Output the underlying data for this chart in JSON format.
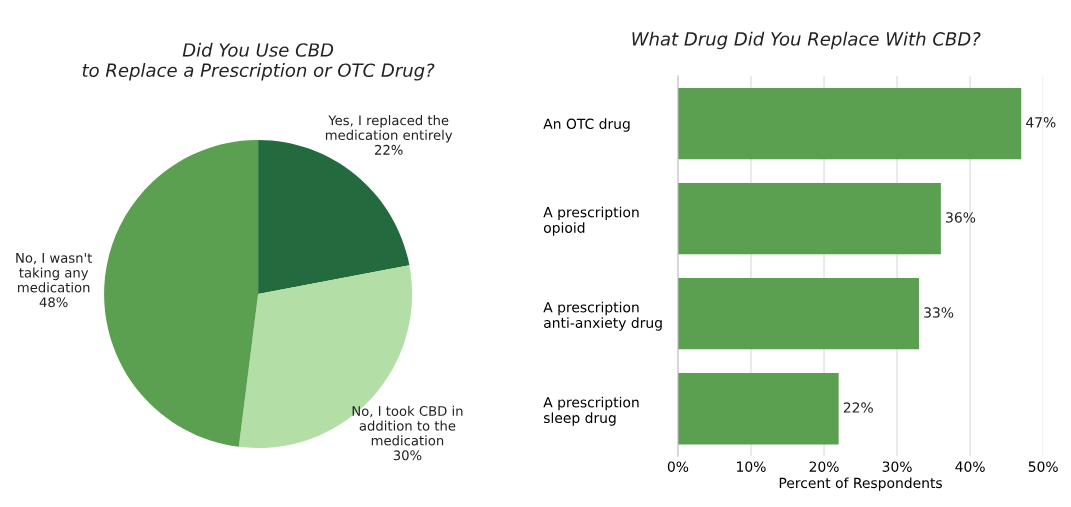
{
  "chart_data": [
    {
      "type": "pie",
      "title": "Did You Use CBD\nto Replace a Prescription or OTC Drug?",
      "categories": [
        "Yes, I replaced the\nmedication entirely",
        "No, I took CBD in\naddition to the\nmedication",
        "No, I wasn't\ntaking any\nmedication"
      ],
      "values": [
        22,
        30,
        48
      ],
      "value_labels": [
        "22%",
        "30%",
        "48%"
      ],
      "colors": [
        "#236b3f",
        "#b3dfa6",
        "#5aa050"
      ]
    },
    {
      "type": "bar",
      "orientation": "horizontal",
      "title": "What Drug Did You Replace With CBD?",
      "categories": [
        "An OTC drug",
        "A prescription\nopioid",
        "A prescription\nanti-anxiety drug",
        "A prescription\nsleep drug"
      ],
      "values": [
        47,
        36,
        33,
        22
      ],
      "value_labels": [
        "47%",
        "36%",
        "33%",
        "22%"
      ],
      "color": "#5aa050",
      "xlim": [
        0,
        50
      ],
      "xticks": [
        {
          "value": 0,
          "label": "0%"
        },
        {
          "value": 10,
          "label": "10%"
        },
        {
          "value": 20,
          "label": "20%"
        },
        {
          "value": 30,
          "label": "30%"
        },
        {
          "value": 40,
          "label": "40%"
        },
        {
          "value": 50,
          "label": "50%"
        }
      ],
      "xlabel": "Percent of Respondents",
      "grid": "x"
    }
  ]
}
